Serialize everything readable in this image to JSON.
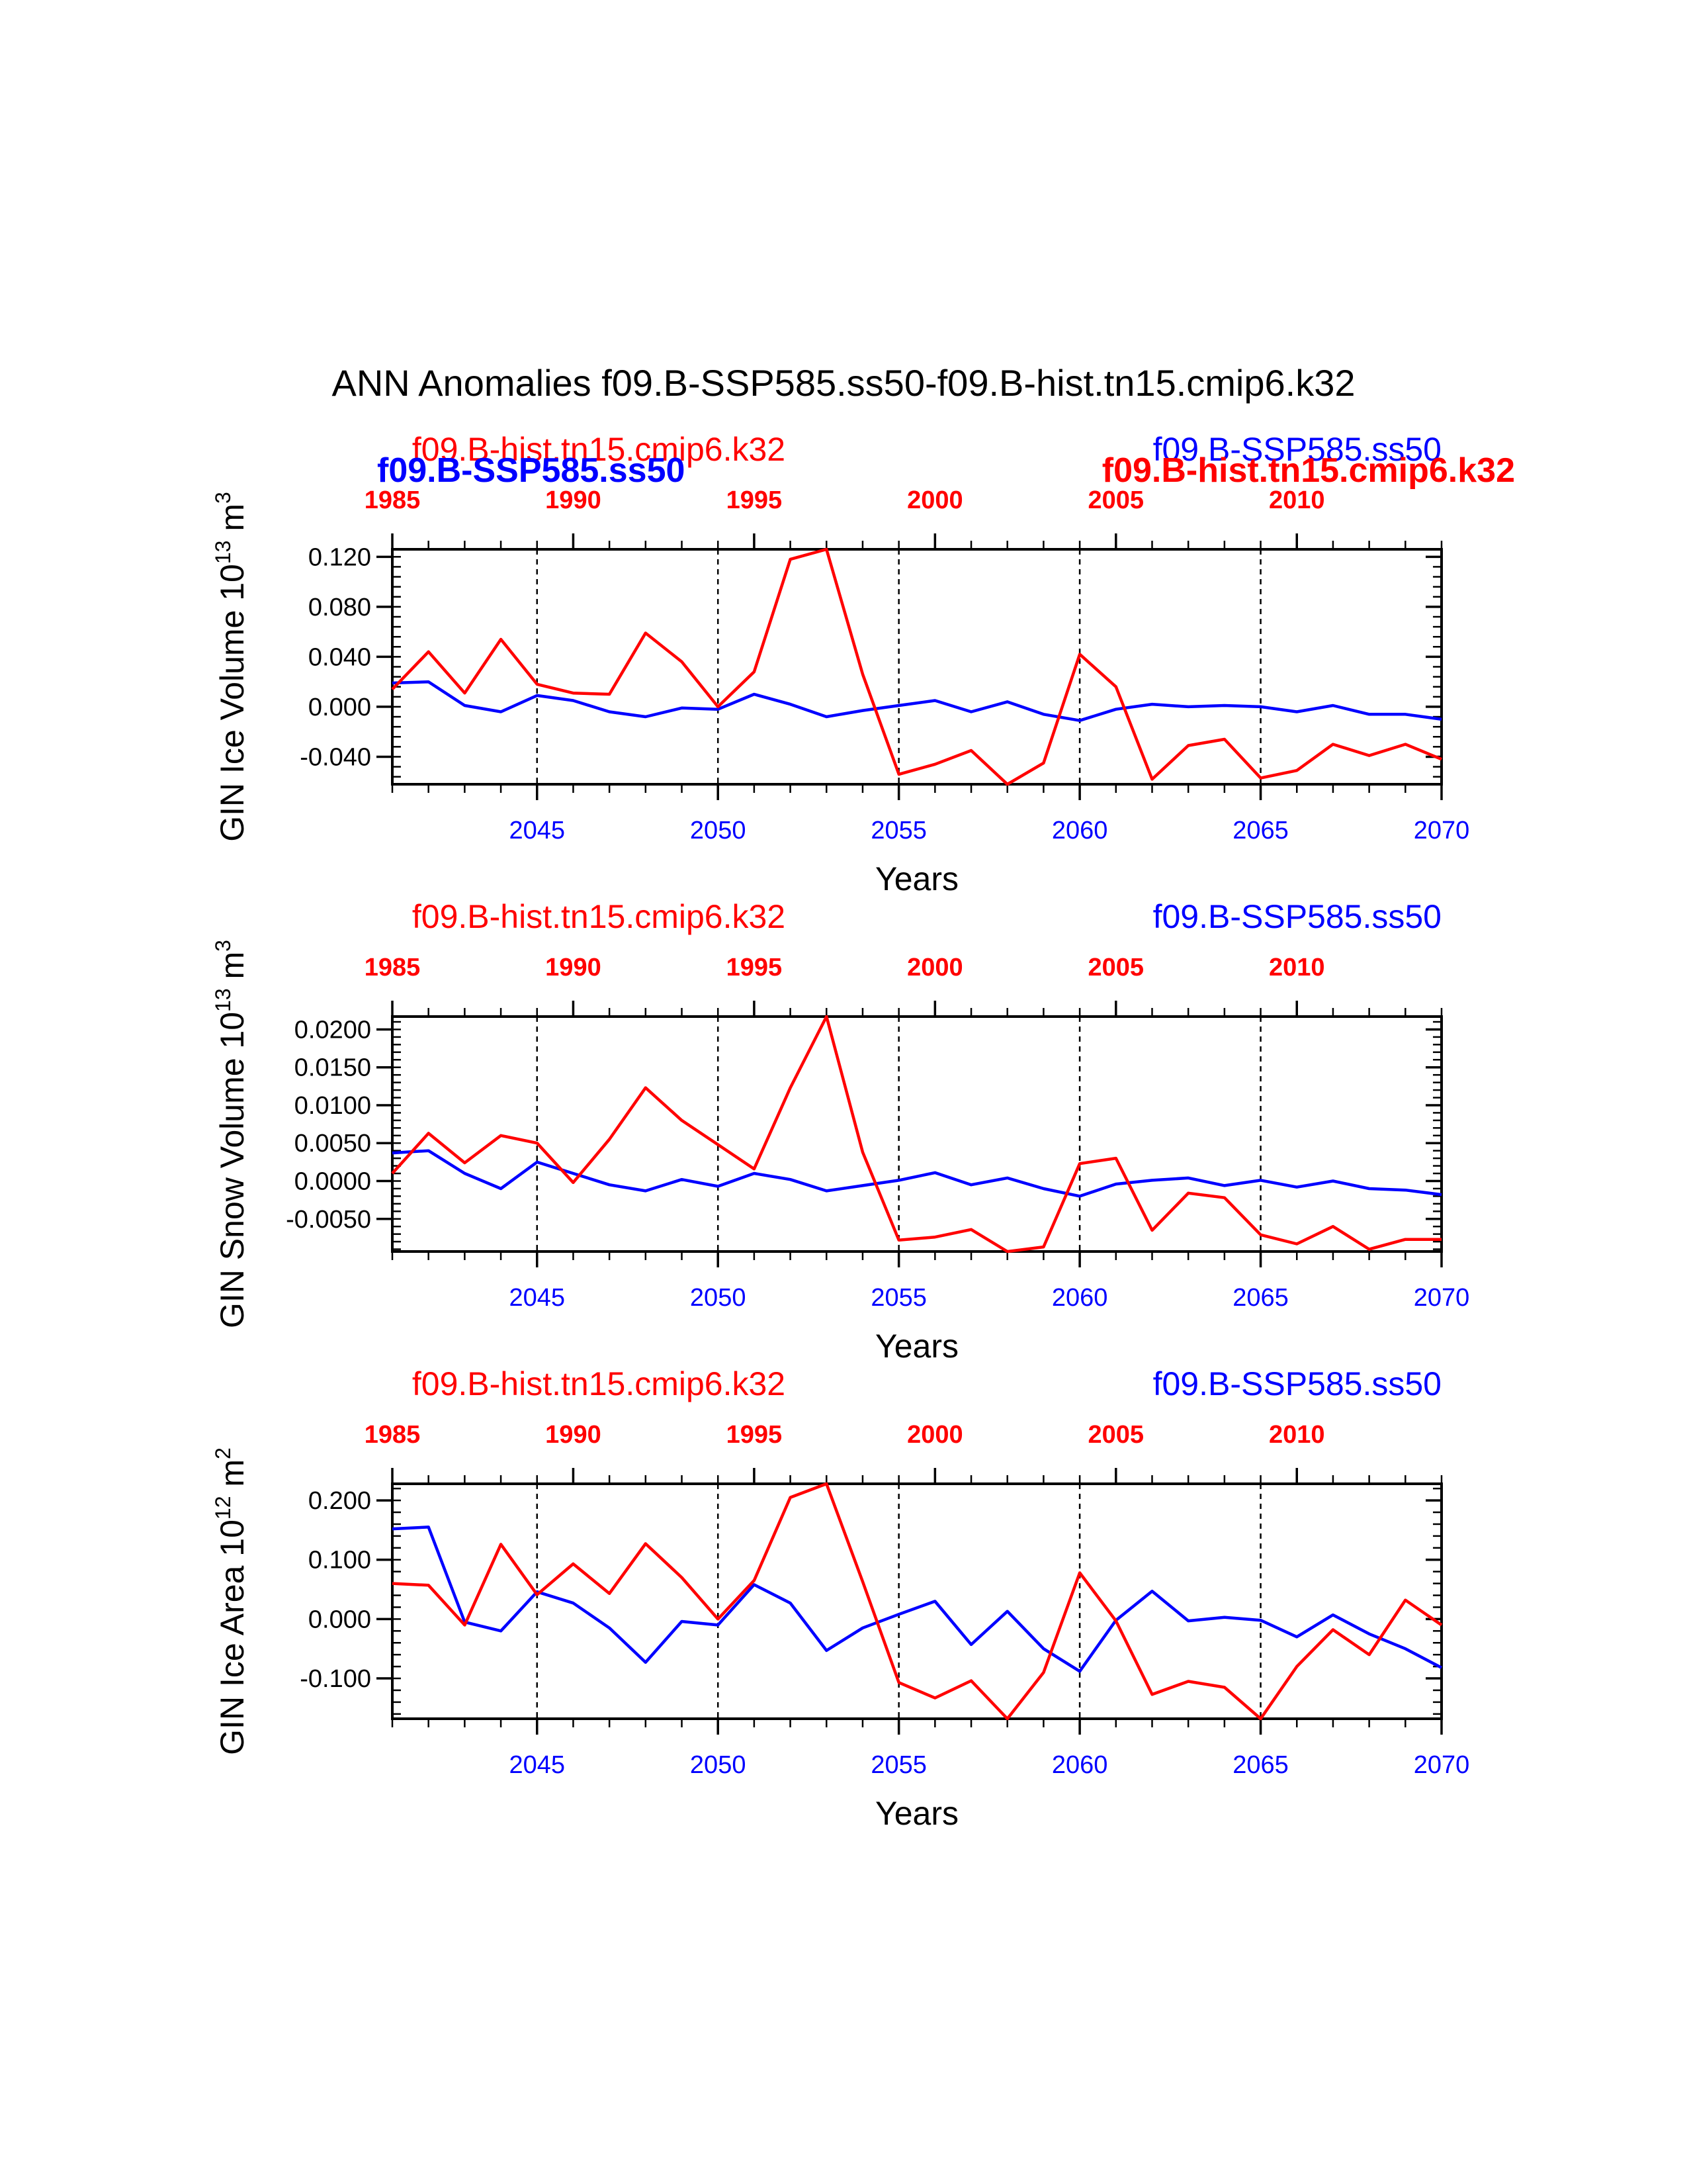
{
  "figure_title": "ANN Anomalies f09.B-SSP585.ss50-f09.B-hist.tn15.cmip6.k32",
  "colors": {
    "case": "#0000ff",
    "control": "#ff0000",
    "axis": "#000000"
  },
  "chart_data": [
    {
      "type": "line",
      "ylabel": "GIN Ice Volume 10",
      "ylabel_sup": "13",
      "ylabel_unit": " m",
      "ylabel_unit_sup": "3",
      "xlabel": "Years",
      "ylim": [
        -0.062,
        0.126
      ],
      "xlim": [
        2041,
        2070
      ],
      "top_xlim": [
        1985,
        2014
      ],
      "yticks": [
        "-0.040",
        "0.000",
        "0.040",
        "0.080",
        "0.120"
      ],
      "ytick_values": [
        -0.04,
        0.0,
        0.04,
        0.08,
        0.12
      ],
      "ytick_minor_step": 0.008,
      "xticks": [
        "2045",
        "2050",
        "2055",
        "2060",
        "2065",
        "2070"
      ],
      "top_xticks": [
        "1985",
        "1990",
        "1995",
        "2000",
        "2005",
        "2010"
      ],
      "vlines": [
        2045,
        2050,
        2055,
        2060,
        2065
      ],
      "left_title": "f09.B-hist.tn15.cmip6.k32",
      "right_title": "f09.B-SSP585.ss50",
      "overlay_left_title": "f09.B-SSP585.ss50",
      "overlay_right_title": "f09.B-hist.tn15.cmip6.k32",
      "x": [
        2041,
        2042,
        2043,
        2044,
        2045,
        2046,
        2047,
        2048,
        2049,
        2050,
        2051,
        2052,
        2053,
        2054,
        2055,
        2056,
        2057,
        2058,
        2059,
        2060,
        2061,
        2062,
        2063,
        2064,
        2065,
        2066,
        2067,
        2068,
        2069,
        2070
      ],
      "series": [
        {
          "name": "f09.B-SSP585.ss50",
          "color": "#0000ff",
          "values": [
            0.019,
            0.02,
            0.001,
            -0.004,
            0.009,
            0.005,
            -0.004,
            -0.008,
            -0.001,
            -0.002,
            0.01,
            0.002,
            -0.008,
            -0.003,
            0.001,
            0.005,
            -0.004,
            0.004,
            -0.006,
            -0.011,
            -0.002,
            0.002,
            0.0,
            0.001,
            0.0,
            -0.004,
            0.001,
            -0.006,
            -0.006,
            -0.01
          ]
        },
        {
          "name": "f09.B-hist.tn15.cmip6.k32",
          "color": "#ff0000",
          "values": [
            0.014,
            0.044,
            0.011,
            0.054,
            0.018,
            0.011,
            0.01,
            0.059,
            0.036,
            0.0,
            0.028,
            0.118,
            0.126,
            0.026,
            -0.054,
            -0.046,
            -0.035,
            -0.062,
            -0.045,
            0.042,
            0.016,
            -0.058,
            -0.031,
            -0.026,
            -0.057,
            -0.051,
            -0.03,
            -0.039,
            -0.03,
            -0.042
          ]
        }
      ]
    },
    {
      "type": "line",
      "ylabel": "GIN Snow Volume 10",
      "ylabel_sup": "13",
      "ylabel_unit": " m",
      "ylabel_unit_sup": "3",
      "xlabel": "Years",
      "ylim": [
        -0.0093,
        0.0217
      ],
      "xlim": [
        2041,
        2070
      ],
      "top_xlim": [
        1985,
        2014
      ],
      "yticks": [
        "-0.0050",
        "0.0000",
        "0.0050",
        "0.0100",
        "0.0150",
        "0.0200"
      ],
      "ytick_values": [
        -0.005,
        0.0,
        0.005,
        0.01,
        0.015,
        0.02
      ],
      "ytick_minor_step": 0.001,
      "xticks": [
        "2045",
        "2050",
        "2055",
        "2060",
        "2065",
        "2070"
      ],
      "top_xticks": [
        "1985",
        "1990",
        "1995",
        "2000",
        "2005",
        "2010"
      ],
      "vlines": [
        2045,
        2050,
        2055,
        2060,
        2065
      ],
      "left_title": "f09.B-hist.tn15.cmip6.k32",
      "right_title": "f09.B-SSP585.ss50",
      "x": [
        2041,
        2042,
        2043,
        2044,
        2045,
        2046,
        2047,
        2048,
        2049,
        2050,
        2051,
        2052,
        2053,
        2054,
        2055,
        2056,
        2057,
        2058,
        2059,
        2060,
        2061,
        2062,
        2063,
        2064,
        2065,
        2066,
        2067,
        2068,
        2069,
        2070
      ],
      "series": [
        {
          "name": "f09.B-SSP585.ss50",
          "color": "#0000ff",
          "values": [
            0.0037,
            0.004,
            0.001,
            -0.001,
            0.0025,
            0.001,
            -0.0005,
            -0.0013,
            0.0002,
            -0.0007,
            0.001,
            0.0002,
            -0.0013,
            -0.0006,
            0.0001,
            0.0011,
            -0.0005,
            0.0004,
            -0.001,
            -0.002,
            -0.0004,
            0.0001,
            0.0004,
            -0.0006,
            0.0001,
            -0.0008,
            0.0,
            -0.001,
            -0.0012,
            -0.0018
          ]
        },
        {
          "name": "f09.B-hist.tn15.cmip6.k32",
          "color": "#ff0000",
          "values": [
            0.001,
            0.0063,
            0.0024,
            0.006,
            0.005,
            -0.0002,
            0.0055,
            0.0123,
            0.008,
            0.0048,
            0.0016,
            0.0123,
            0.0217,
            0.0038,
            -0.0078,
            -0.0074,
            -0.0064,
            -0.0093,
            -0.0087,
            0.0023,
            0.003,
            -0.0065,
            -0.0016,
            -0.0022,
            -0.0071,
            -0.0083,
            -0.006,
            -0.009,
            -0.0077,
            -0.0077
          ]
        }
      ]
    },
    {
      "type": "line",
      "ylabel": "GIN Ice Area 10",
      "ylabel_sup": "12",
      "ylabel_unit": " m",
      "ylabel_unit_sup": "2",
      "xlabel": "Years",
      "ylim": [
        -0.168,
        0.228
      ],
      "xlim": [
        2041,
        2070
      ],
      "top_xlim": [
        1985,
        2014
      ],
      "yticks": [
        "-0.100",
        "0.000",
        "0.100",
        "0.200"
      ],
      "ytick_values": [
        -0.1,
        0.0,
        0.1,
        0.2
      ],
      "ytick_minor_step": 0.02,
      "xticks": [
        "2045",
        "2050",
        "2055",
        "2060",
        "2065",
        "2070"
      ],
      "top_xticks": [
        "1985",
        "1990",
        "1995",
        "2000",
        "2005",
        "2010"
      ],
      "vlines": [
        2045,
        2050,
        2055,
        2060,
        2065
      ],
      "left_title": "f09.B-hist.tn15.cmip6.k32",
      "right_title": "f09.B-SSP585.ss50",
      "x": [
        2041,
        2042,
        2043,
        2044,
        2045,
        2046,
        2047,
        2048,
        2049,
        2050,
        2051,
        2052,
        2053,
        2054,
        2055,
        2056,
        2057,
        2058,
        2059,
        2060,
        2061,
        2062,
        2063,
        2064,
        2065,
        2066,
        2067,
        2068,
        2069,
        2070
      ],
      "series": [
        {
          "name": "f09.B-SSP585.ss50",
          "color": "#0000ff",
          "values": [
            0.152,
            0.155,
            -0.005,
            -0.02,
            0.046,
            0.027,
            -0.015,
            -0.073,
            -0.004,
            -0.01,
            0.058,
            0.027,
            -0.053,
            -0.015,
            0.008,
            0.03,
            -0.043,
            0.013,
            -0.05,
            -0.088,
            -0.002,
            0.047,
            -0.003,
            0.003,
            -0.002,
            -0.03,
            0.007,
            -0.025,
            -0.05,
            -0.082
          ]
        },
        {
          "name": "f09.B-hist.tn15.cmip6.k32",
          "color": "#ff0000",
          "values": [
            0.06,
            0.057,
            -0.01,
            0.126,
            0.041,
            0.093,
            0.043,
            0.127,
            0.07,
            0.0,
            0.065,
            0.205,
            0.228,
            0.063,
            -0.107,
            -0.133,
            -0.104,
            -0.168,
            -0.09,
            0.078,
            -0.003,
            -0.127,
            -0.105,
            -0.115,
            -0.168,
            -0.08,
            -0.018,
            -0.06,
            0.032,
            -0.01
          ]
        }
      ]
    }
  ]
}
